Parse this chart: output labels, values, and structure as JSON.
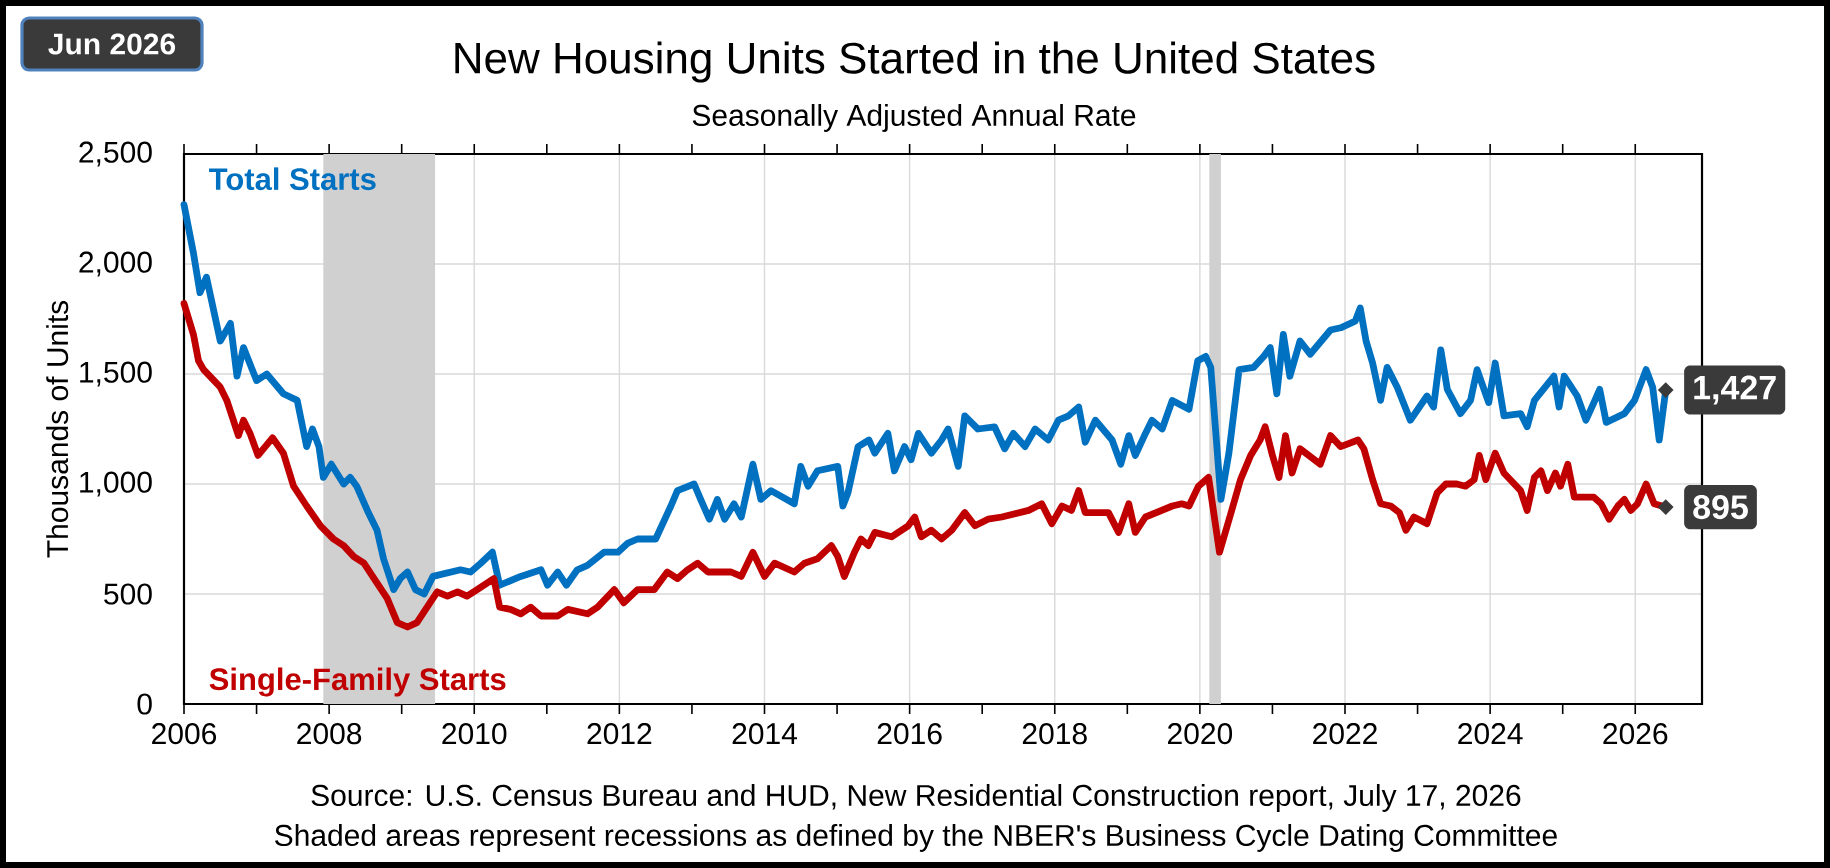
{
  "chart_data": {
    "type": "line",
    "title": "New Housing Units Started in the United States",
    "subtitle": "Seasonally Adjusted  Annual  Rate",
    "ylabel": "Thousands of Units",
    "annotations": [
      "Jun 2026",
      "Source:  U.S. Census Bureau and HUD, New Residential Construction report, July 17, 2026",
      "Shaded areas represent recessions as defined by the NBER's Business Cycle Dating Committee"
    ],
    "xlim": [
      2006,
      2026.92
    ],
    "ylim": [
      0,
      2500
    ],
    "xticks": [
      2006,
      {
        "value": 2007,
        "label": null
      },
      2008,
      {
        "value": 2009,
        "label": null
      },
      2010,
      {
        "value": 2011,
        "label": null
      },
      2012,
      {
        "value": 2013,
        "label": null
      },
      2014,
      {
        "value": 2015,
        "label": null
      },
      2016,
      {
        "value": 2017,
        "label": null
      },
      2018,
      {
        "value": 2019,
        "label": null
      },
      2020,
      {
        "value": 2021,
        "label": null
      },
      2022,
      {
        "value": 2023,
        "label": null
      },
      2024,
      {
        "value": 2025,
        "label": null
      },
      2026
    ],
    "yticks": [
      0,
      500,
      {
        "value": 1000,
        "label": "1,000"
      },
      {
        "value": 1500,
        "label": "1,500"
      },
      {
        "value": 2000,
        "label": "2,000"
      },
      {
        "value": 2500,
        "label": "2,500"
      }
    ],
    "grid": true,
    "bands": [
      {
        "axis": "x",
        "from": 2007.92,
        "to": 2009.46,
        "color": "#d0d0d0"
      },
      {
        "axis": "x",
        "from": 2020.13,
        "to": 2020.29,
        "color": "#d0d0d0"
      }
    ],
    "series": [
      {
        "name": "Total Starts",
        "color": "#0070c0",
        "x": [
          2006.0,
          2006.13,
          2006.22,
          2006.31,
          2006.5,
          2006.64,
          2006.73,
          2006.82,
          2007.0,
          2007.14,
          2007.37,
          2007.56,
          2007.69,
          2007.77,
          2007.86,
          2007.92,
          2008.03,
          2008.2,
          2008.29,
          2008.38,
          2008.54,
          2008.66,
          2008.75,
          2008.89,
          2008.98,
          2009.08,
          2009.19,
          2009.31,
          2009.43,
          2009.81,
          2009.95,
          2010.09,
          2010.25,
          2010.35,
          2010.64,
          2010.92,
          2011.01,
          2011.15,
          2011.27,
          2011.42,
          2011.56,
          2011.79,
          2011.98,
          2012.11,
          2012.25,
          2012.5,
          2012.71,
          2012.8,
          2013.03,
          2013.12,
          2013.24,
          2013.35,
          2013.45,
          2013.58,
          2013.68,
          2013.84,
          2013.95,
          2014.09,
          2014.41,
          2014.5,
          2014.6,
          2014.73,
          2015.01,
          2015.08,
          2015.15,
          2015.29,
          2015.44,
          2015.52,
          2015.7,
          2015.79,
          2015.93,
          2016.02,
          2016.12,
          2016.3,
          2016.44,
          2016.53,
          2016.67,
          2016.76,
          2016.94,
          2017.17,
          2017.31,
          2017.43,
          2017.59,
          2017.73,
          2017.91,
          2018.05,
          2018.19,
          2018.33,
          2018.42,
          2018.56,
          2018.79,
          2018.91,
          2019.02,
          2019.11,
          2019.25,
          2019.34,
          2019.48,
          2019.62,
          2019.85,
          2019.97,
          2020.08,
          2020.15,
          2020.29,
          2020.4,
          2020.54,
          2020.74,
          2020.88,
          2020.97,
          2021.06,
          2021.15,
          2021.24,
          2021.38,
          2021.52,
          2021.8,
          2021.94,
          2022.14,
          2022.21,
          2022.29,
          2022.38,
          2022.49,
          2022.58,
          2022.72,
          2022.9,
          2023.13,
          2023.22,
          2023.32,
          2023.41,
          2023.59,
          2023.73,
          2023.82,
          2023.98,
          2024.07,
          2024.19,
          2024.42,
          2024.51,
          2024.61,
          2024.88,
          2024.95,
          2025.02,
          2025.2,
          2025.32,
          2025.43,
          2025.51,
          2025.6,
          2025.85,
          2025.99,
          2026.15,
          2026.24,
          2026.33,
          2026.42
        ],
        "values": [
          2270,
          2050,
          1870,
          1940,
          1650,
          1730,
          1490,
          1620,
          1470,
          1500,
          1410,
          1380,
          1170,
          1250,
          1170,
          1030,
          1090,
          1000,
          1030,
          990,
          870,
          790,
          660,
          520,
          570,
          600,
          520,
          500,
          580,
          610,
          600,
          640,
          690,
          540,
          580,
          610,
          540,
          600,
          540,
          610,
          630,
          690,
          690,
          730,
          750,
          750,
          900,
          970,
          1000,
          930,
          840,
          930,
          840,
          910,
          850,
          1090,
          930,
          970,
          910,
          1080,
          990,
          1060,
          1080,
          900,
          960,
          1170,
          1200,
          1140,
          1230,
          1060,
          1170,
          1110,
          1230,
          1140,
          1200,
          1250,
          1080,
          1310,
          1250,
          1260,
          1160,
          1230,
          1170,
          1250,
          1200,
          1290,
          1310,
          1350,
          1190,
          1290,
          1200,
          1090,
          1220,
          1130,
          1230,
          1290,
          1250,
          1380,
          1340,
          1560,
          1580,
          1530,
          930,
          1140,
          1520,
          1530,
          1580,
          1620,
          1410,
          1680,
          1490,
          1650,
          1590,
          1700,
          1710,
          1740,
          1800,
          1650,
          1550,
          1380,
          1530,
          1440,
          1290,
          1400,
          1350,
          1610,
          1430,
          1320,
          1380,
          1520,
          1370,
          1550,
          1310,
          1320,
          1260,
          1380,
          1490,
          1350,
          1490,
          1400,
          1290,
          1370,
          1430,
          1280,
          1320,
          1380,
          1520,
          1440,
          1200,
          1427
        ],
        "value_labels": [
          null,
          null,
          null,
          null,
          null,
          null,
          null,
          null,
          null,
          null,
          null,
          null,
          null,
          null,
          null,
          null,
          null,
          null,
          null,
          null,
          null,
          null,
          null,
          null,
          null,
          null,
          null,
          null,
          null,
          null,
          null,
          null,
          null,
          null,
          null,
          null,
          null,
          null,
          null,
          null,
          null,
          null,
          null,
          null,
          null,
          null,
          null,
          null,
          null,
          null,
          null,
          null,
          null,
          null,
          null,
          null,
          null,
          null,
          null,
          null,
          null,
          null,
          null,
          null,
          null,
          null,
          null,
          null,
          null,
          null,
          null,
          null,
          null,
          null,
          null,
          null,
          null,
          null,
          null,
          null,
          null,
          null,
          null,
          null,
          null,
          null,
          null,
          null,
          null,
          null,
          null,
          null,
          null,
          null,
          null,
          null,
          null,
          null,
          null,
          null,
          null,
          null,
          null,
          null,
          null,
          null,
          null,
          null,
          null,
          null,
          null,
          null,
          null,
          null,
          null,
          null,
          null,
          null,
          null,
          null,
          null,
          null,
          null,
          null,
          null,
          null,
          null,
          null,
          null,
          null,
          null,
          null,
          null,
          null,
          null,
          null,
          null,
          null,
          null,
          null,
          null,
          null,
          null,
          null,
          null,
          null,
          null,
          null,
          null,
          "1,427"
        ]
      },
      {
        "name": "Single-Family Starts",
        "color": "#c00000",
        "x": [
          2006.0,
          2006.13,
          2006.2,
          2006.27,
          2006.5,
          2006.59,
          2006.75,
          2006.82,
          2006.91,
          2007.02,
          2007.22,
          2007.37,
          2007.51,
          2007.69,
          2007.88,
          2008.06,
          2008.2,
          2008.34,
          2008.48,
          2008.62,
          2008.8,
          2008.94,
          2009.08,
          2009.21,
          2009.35,
          2009.49,
          2009.63,
          2009.77,
          2009.9,
          2010.04,
          2010.27,
          2010.35,
          2010.5,
          2010.64,
          2010.78,
          2010.92,
          2011.15,
          2011.29,
          2011.56,
          2011.7,
          2011.93,
          2012.06,
          2012.25,
          2012.48,
          2012.66,
          2012.8,
          2012.94,
          2013.08,
          2013.22,
          2013.54,
          2013.68,
          2013.84,
          2014.0,
          2014.14,
          2014.41,
          2014.55,
          2014.73,
          2014.92,
          2015.01,
          2015.1,
          2015.24,
          2015.33,
          2015.43,
          2015.52,
          2015.75,
          2015.98,
          2016.07,
          2016.16,
          2016.3,
          2016.44,
          2016.58,
          2016.76,
          2016.9,
          2017.08,
          2017.27,
          2017.64,
          2017.82,
          2017.96,
          2018.1,
          2018.23,
          2018.33,
          2018.42,
          2018.74,
          2018.88,
          2019.02,
          2019.11,
          2019.25,
          2019.62,
          2019.75,
          2019.85,
          2019.98,
          2020.12,
          2020.27,
          2020.43,
          2020.56,
          2020.7,
          2020.83,
          2020.9,
          2021.0,
          2021.09,
          2021.18,
          2021.27,
          2021.38,
          2021.66,
          2021.8,
          2021.94,
          2022.18,
          2022.26,
          2022.38,
          2022.49,
          2022.63,
          2022.75,
          2022.84,
          2022.95,
          2023.13,
          2023.27,
          2023.39,
          2023.54,
          2023.66,
          2023.78,
          2023.85,
          2023.94,
          2024.07,
          2024.19,
          2024.42,
          2024.51,
          2024.61,
          2024.7,
          2024.79,
          2024.9,
          2024.97,
          2025.07,
          2025.16,
          2025.43,
          2025.53,
          2025.64,
          2025.76,
          2025.85,
          2025.94,
          2026.03,
          2026.15,
          2026.26,
          2026.42
        ],
        "values": [
          1820,
          1680,
          1560,
          1520,
          1440,
          1380,
          1220,
          1290,
          1230,
          1130,
          1210,
          1140,
          990,
          900,
          810,
          750,
          720,
          670,
          640,
          570,
          480,
          370,
          350,
          370,
          440,
          510,
          490,
          510,
          490,
          520,
          570,
          440,
          430,
          410,
          440,
          400,
          400,
          430,
          410,
          440,
          520,
          460,
          520,
          520,
          600,
          570,
          610,
          640,
          600,
          600,
          580,
          690,
          580,
          640,
          600,
          640,
          660,
          720,
          670,
          580,
          690,
          750,
          720,
          780,
          760,
          810,
          850,
          760,
          790,
          750,
          790,
          870,
          810,
          840,
          850,
          880,
          910,
          820,
          900,
          880,
          970,
          870,
          870,
          780,
          910,
          780,
          850,
          900,
          910,
          900,
          990,
          1030,
          690,
          870,
          1020,
          1130,
          1200,
          1260,
          1130,
          1030,
          1220,
          1050,
          1160,
          1090,
          1220,
          1170,
          1200,
          1160,
          1020,
          910,
          900,
          870,
          790,
          850,
          820,
          960,
          1000,
          1000,
          990,
          1020,
          1130,
          1020,
          1140,
          1050,
          970,
          880,
          1030,
          1060,
          970,
          1050,
          990,
          1090,
          940,
          940,
          910,
          840,
          900,
          930,
          880,
          910,
          1000,
          910,
          895
        ],
        "value_labels": [
          null,
          null,
          null,
          null,
          null,
          null,
          null,
          null,
          null,
          null,
          null,
          null,
          null,
          null,
          null,
          null,
          null,
          null,
          null,
          null,
          null,
          null,
          null,
          null,
          null,
          null,
          null,
          null,
          null,
          null,
          null,
          null,
          null,
          null,
          null,
          null,
          null,
          null,
          null,
          null,
          null,
          null,
          null,
          null,
          null,
          null,
          null,
          null,
          null,
          null,
          null,
          null,
          null,
          null,
          null,
          null,
          null,
          null,
          null,
          null,
          null,
          null,
          null,
          null,
          null,
          null,
          null,
          null,
          null,
          null,
          null,
          null,
          null,
          null,
          null,
          null,
          null,
          null,
          null,
          null,
          null,
          null,
          null,
          null,
          null,
          null,
          null,
          null,
          null,
          null,
          null,
          null,
          null,
          null,
          null,
          null,
          null,
          null,
          null,
          null,
          null,
          null,
          null,
          null,
          null,
          null,
          null,
          null,
          null,
          null,
          null,
          null,
          null,
          null,
          null,
          null,
          null,
          null,
          null,
          null,
          null,
          null,
          null,
          null,
          null,
          null,
          null,
          null,
          null,
          null,
          null,
          null,
          null,
          null,
          null,
          null,
          null,
          null,
          null,
          null,
          null,
          null,
          "895"
        ]
      }
    ]
  }
}
